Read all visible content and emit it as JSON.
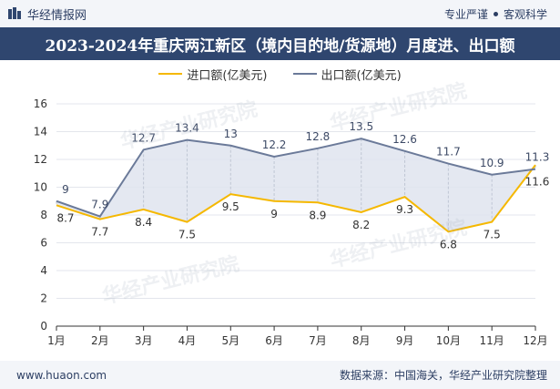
{
  "header": {
    "brand": "华经情报网",
    "tagline_left": "专业严谨",
    "tagline_right": "客观科学"
  },
  "title": "2023-2024年重庆两江新区（境内目的地/货源地）月度进、出口额",
  "footer": {
    "website": "www.huaon.com",
    "source": "数据来源：中国海关，华经产业研究院整理"
  },
  "watermark": "华经产业研究院",
  "chart_data": {
    "type": "line",
    "categories": [
      "1月",
      "2月",
      "3月",
      "4月",
      "5月",
      "6月",
      "7月",
      "8月",
      "9月",
      "10月",
      "11月",
      "12月"
    ],
    "series": [
      {
        "name": "进口额(亿美元)",
        "color": "#f5b800",
        "values": [
          8.7,
          7.7,
          8.4,
          7.5,
          9.5,
          9,
          8.9,
          8.2,
          9.3,
          6.8,
          7.5,
          11.6
        ]
      },
      {
        "name": "出口额(亿美元)",
        "color": "#6b7a99",
        "values": [
          9,
          7.9,
          12.7,
          13.4,
          13,
          12.2,
          12.8,
          13.5,
          12.6,
          11.7,
          10.9,
          11.3
        ]
      }
    ],
    "ylim": [
      0,
      16
    ],
    "yticks": [
      0,
      2,
      4,
      6,
      8,
      10,
      12,
      14,
      16
    ],
    "legend_position": "top-center",
    "fill_between": true
  }
}
